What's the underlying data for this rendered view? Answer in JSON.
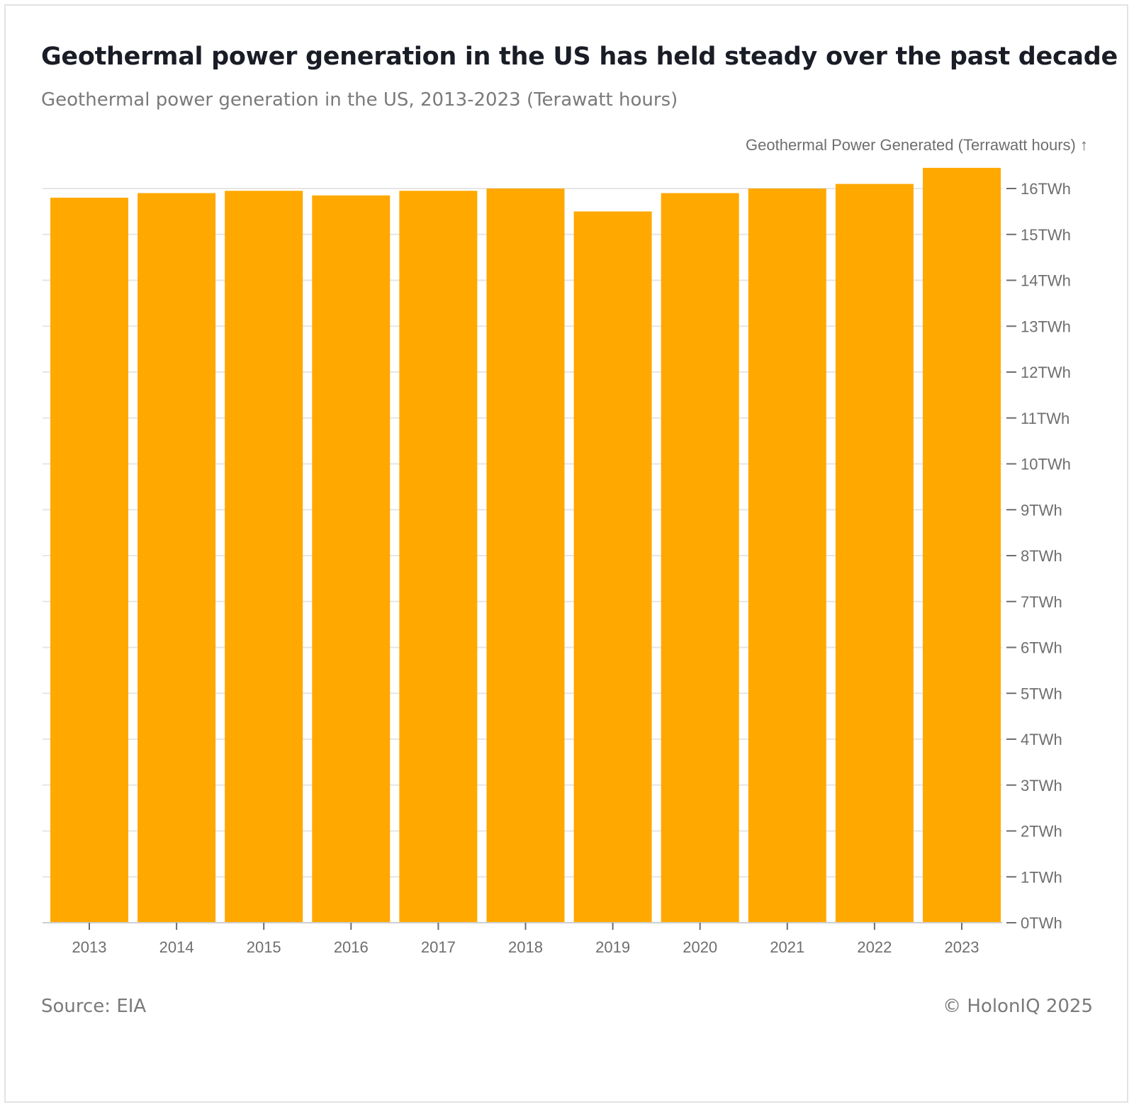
{
  "header": {
    "title": "Geothermal power generation in the US has held steady over the past decade",
    "subtitle": "Geothermal power generation in the US, 2013-2023 (Terawatt hours)"
  },
  "footer": {
    "source": "Source: EIA",
    "copyright": "© HolonIQ 2025"
  },
  "colors": {
    "bar": "#ffa800",
    "grid": "#e6e6e6",
    "text": "#6e6e6e"
  },
  "chart_data": {
    "type": "bar",
    "categories": [
      "2013",
      "2014",
      "2015",
      "2016",
      "2017",
      "2018",
      "2019",
      "2020",
      "2021",
      "2022",
      "2023"
    ],
    "values": [
      15.8,
      15.9,
      15.95,
      15.85,
      15.95,
      16.0,
      15.5,
      15.9,
      16.0,
      16.1,
      16.45
    ],
    "title": "Geothermal power generation in the US has held steady over the past decade",
    "subtitle": "Geothermal power generation in the US, 2013-2023 (Terawatt hours)",
    "ylabel": "Geothermal Power Generated (Terrawatt hours) ↑",
    "xlabel": "",
    "ylim": [
      0,
      16
    ],
    "yticks": [
      0,
      1,
      2,
      3,
      4,
      5,
      6,
      7,
      8,
      9,
      10,
      11,
      12,
      13,
      14,
      15,
      16
    ],
    "ytick_labels": [
      "0TWh",
      "1TWh",
      "2TWh",
      "3TWh",
      "4TWh",
      "5TWh",
      "6TWh",
      "7TWh",
      "8TWh",
      "9TWh",
      "10TWh",
      "11TWh",
      "12TWh",
      "13TWh",
      "14TWh",
      "15TWh",
      "16TWh"
    ],
    "y_axis_position": "right",
    "grid": true,
    "legend": "none"
  }
}
